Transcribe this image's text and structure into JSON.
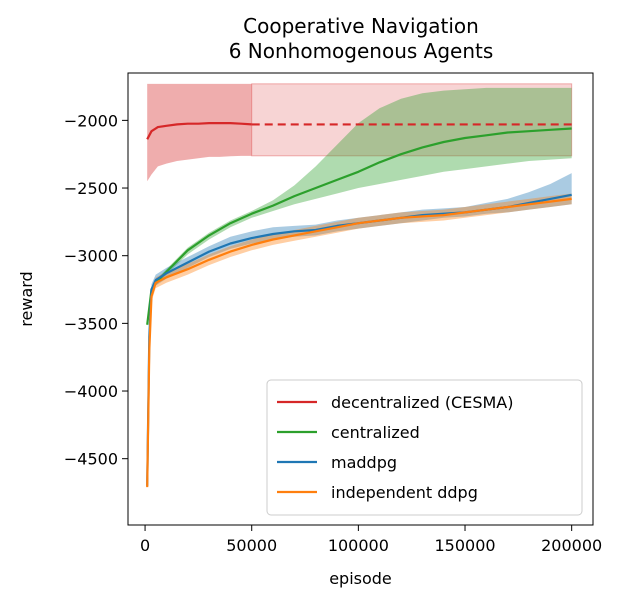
{
  "chart_data": {
    "type": "line",
    "title": [
      "Cooperative Navigation",
      "6 Nonhomogenous Agents"
    ],
    "xlabel": "episode",
    "ylabel": "reward",
    "xlim": [
      -8000,
      210000
    ],
    "ylim": [
      -4990,
      -1650
    ],
    "xticks": [
      0,
      50000,
      100000,
      150000,
      200000
    ],
    "xtick_labels": [
      "0",
      "50000",
      "100000",
      "150000",
      "200000"
    ],
    "yticks": [
      -4500,
      -4000,
      -3500,
      -3000,
      -2500,
      -2000
    ],
    "ytick_labels": [
      "−4500",
      "−4000",
      "−3500",
      "−3000",
      "−2500",
      "−2000"
    ],
    "legend_position": "lower-right",
    "series": [
      {
        "name": "decentralized (CESMA)",
        "color": "#d62728",
        "x": [
          1000,
          3000,
          6000,
          10000,
          15000,
          20000,
          25000,
          30000,
          35000,
          40000,
          45000,
          50000
        ],
        "y": [
          -2140,
          -2080,
          -2050,
          -2040,
          -2030,
          -2025,
          -2025,
          -2020,
          -2020,
          -2020,
          -2025,
          -2030
        ],
        "lower": [
          -2450,
          -2400,
          -2340,
          -2320,
          -2300,
          -2290,
          -2280,
          -2270,
          -2270,
          -2265,
          -2262,
          -2262
        ],
        "upper": [
          -1730,
          -1730,
          -1730,
          -1730,
          -1730,
          -1730,
          -1730,
          -1730,
          -1730,
          -1730,
          -1730,
          -1730
        ],
        "extension": {
          "x": [
            50000,
            200000
          ],
          "y": -2030,
          "lower": -2262,
          "upper": -1730
        }
      },
      {
        "name": "centralized",
        "color": "#2ca02c",
        "x": [
          1000,
          3000,
          5000,
          10000,
          20000,
          30000,
          40000,
          50000,
          60000,
          70000,
          80000,
          90000,
          100000,
          110000,
          120000,
          130000,
          140000,
          150000,
          160000,
          170000,
          180000,
          190000,
          200000
        ],
        "y": [
          -3510,
          -3250,
          -3200,
          -3120,
          -2960,
          -2850,
          -2760,
          -2690,
          -2630,
          -2560,
          -2500,
          -2440,
          -2380,
          -2310,
          -2250,
          -2200,
          -2160,
          -2130,
          -2110,
          -2090,
          -2080,
          -2070,
          -2060
        ],
        "lower": [
          -3520,
          -3270,
          -3220,
          -3140,
          -2990,
          -2880,
          -2790,
          -2720,
          -2670,
          -2620,
          -2580,
          -2540,
          -2500,
          -2470,
          -2440,
          -2410,
          -2380,
          -2360,
          -2340,
          -2320,
          -2300,
          -2290,
          -2280
        ],
        "upper": [
          -3490,
          -3230,
          -3180,
          -3100,
          -2940,
          -2830,
          -2740,
          -2670,
          -2590,
          -2480,
          -2340,
          -2180,
          -2020,
          -1910,
          -1840,
          -1800,
          -1780,
          -1770,
          -1760,
          -1760,
          -1760,
          -1760,
          -1760
        ]
      },
      {
        "name": "maddpg",
        "color": "#1f77b4",
        "x": [
          1000,
          2000,
          3000,
          5000,
          10000,
          20000,
          30000,
          40000,
          50000,
          60000,
          70000,
          80000,
          90000,
          100000,
          110000,
          120000,
          130000,
          140000,
          150000,
          160000,
          170000,
          180000,
          190000,
          200000
        ],
        "y": [
          -4700,
          -3600,
          -3250,
          -3180,
          -3130,
          -3050,
          -2970,
          -2910,
          -2870,
          -2840,
          -2820,
          -2810,
          -2780,
          -2760,
          -2740,
          -2720,
          -2700,
          -2690,
          -2680,
          -2660,
          -2640,
          -2610,
          -2580,
          -2550
        ],
        "lower": [
          -4700,
          -3650,
          -3290,
          -3220,
          -3170,
          -3090,
          -3010,
          -2950,
          -2910,
          -2880,
          -2860,
          -2850,
          -2820,
          -2800,
          -2780,
          -2760,
          -2740,
          -2720,
          -2710,
          -2690,
          -2680,
          -2660,
          -2640,
          -2620
        ],
        "upper": [
          -4700,
          -3550,
          -3210,
          -3140,
          -3090,
          -3010,
          -2930,
          -2860,
          -2820,
          -2790,
          -2780,
          -2770,
          -2740,
          -2720,
          -2700,
          -2680,
          -2660,
          -2650,
          -2640,
          -2610,
          -2580,
          -2530,
          -2470,
          -2390
        ]
      },
      {
        "name": "independent ddpg",
        "color": "#ff7f0e",
        "x": [
          1000,
          2000,
          3000,
          5000,
          10000,
          20000,
          30000,
          40000,
          50000,
          60000,
          70000,
          80000,
          90000,
          100000,
          110000,
          120000,
          130000,
          140000,
          150000,
          160000,
          170000,
          180000,
          190000,
          200000
        ],
        "y": [
          -4710,
          -3700,
          -3300,
          -3200,
          -3160,
          -3100,
          -3030,
          -2970,
          -2920,
          -2880,
          -2850,
          -2820,
          -2790,
          -2760,
          -2740,
          -2720,
          -2710,
          -2700,
          -2680,
          -2660,
          -2640,
          -2620,
          -2600,
          -2580
        ],
        "lower": [
          -4710,
          -3750,
          -3340,
          -3240,
          -3200,
          -3140,
          -3070,
          -3010,
          -2960,
          -2920,
          -2890,
          -2860,
          -2830,
          -2800,
          -2780,
          -2760,
          -2750,
          -2740,
          -2720,
          -2700,
          -2680,
          -2660,
          -2640,
          -2620
        ],
        "upper": [
          -4710,
          -3650,
          -3260,
          -3160,
          -3120,
          -3060,
          -2990,
          -2930,
          -2880,
          -2840,
          -2810,
          -2780,
          -2750,
          -2720,
          -2700,
          -2680,
          -2670,
          -2660,
          -2640,
          -2620,
          -2600,
          -2580,
          -2560,
          -2540
        ]
      }
    ]
  }
}
